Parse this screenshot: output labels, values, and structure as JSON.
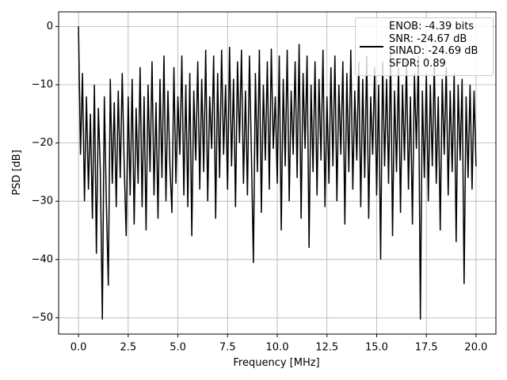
{
  "chart_data": {
    "type": "line",
    "xlabel": "Frequency [MHz]",
    "ylabel": "PSD [dB]",
    "x": [
      0,
      0.1,
      0.2,
      0.3,
      0.4,
      0.5,
      0.6,
      0.7,
      0.8,
      0.9,
      1,
      1.1,
      1.2,
      1.3,
      1.4,
      1.5,
      1.6,
      1.7,
      1.8,
      1.9,
      2,
      2.1,
      2.2,
      2.3,
      2.4,
      2.5,
      2.6,
      2.7,
      2.8,
      2.9,
      3,
      3.1,
      3.2,
      3.3,
      3.4,
      3.5,
      3.6,
      3.7,
      3.8,
      3.9,
      4,
      4.1,
      4.2,
      4.3,
      4.4,
      4.5,
      4.6,
      4.7,
      4.8,
      4.9,
      5,
      5.1,
      5.2,
      5.3,
      5.4,
      5.5,
      5.6,
      5.7,
      5.8,
      5.9,
      6,
      6.1,
      6.2,
      6.3,
      6.4,
      6.5,
      6.6,
      6.7,
      6.8,
      6.9,
      7,
      7.1,
      7.2,
      7.3,
      7.4,
      7.5,
      7.6,
      7.7,
      7.8,
      7.9,
      8,
      8.1,
      8.2,
      8.3,
      8.4,
      8.5,
      8.6,
      8.7,
      8.8,
      8.9,
      9,
      9.1,
      9.2,
      9.3,
      9.4,
      9.5,
      9.6,
      9.7,
      9.8,
      9.9,
      10,
      10.1,
      10.2,
      10.3,
      10.4,
      10.5,
      10.6,
      10.7,
      10.8,
      10.9,
      11,
      11.1,
      11.2,
      11.3,
      11.4,
      11.5,
      11.6,
      11.7,
      11.8,
      11.9,
      12,
      12.1,
      12.2,
      12.3,
      12.4,
      12.5,
      12.6,
      12.7,
      12.8,
      12.9,
      13,
      13.1,
      13.2,
      13.3,
      13.4,
      13.5,
      13.6,
      13.7,
      13.8,
      13.9,
      14,
      14.1,
      14.2,
      14.3,
      14.4,
      14.5,
      14.6,
      14.7,
      14.8,
      14.9,
      15,
      15.1,
      15.2,
      15.3,
      15.4,
      15.5,
      15.6,
      15.7,
      15.8,
      15.9,
      16,
      16.1,
      16.2,
      16.3,
      16.4,
      16.5,
      16.6,
      16.7,
      16.8,
      16.9,
      17,
      17.1,
      17.2,
      17.3,
      17.4,
      17.5,
      17.6,
      17.7,
      17.8,
      17.9,
      18,
      18.1,
      18.2,
      18.3,
      18.4,
      18.5,
      18.6,
      18.7,
      18.8,
      18.9,
      19,
      19.1,
      19.2,
      19.3,
      19.4,
      19.5,
      19.6,
      19.7,
      19.8,
      19.9,
      20
    ],
    "series": [
      {
        "name": "ENOB: -4.39 bits\nSNR: -24.67 dB\nSINAD: -24.69 dB\nSFDR: 0.89",
        "color": "#000000",
        "values": [
          0,
          -22,
          -8,
          -30,
          -12,
          -28,
          -15,
          -33,
          -10,
          -39,
          -14,
          -25,
          -50.3,
          -12,
          -30,
          -44.5,
          -9,
          -27,
          -13,
          -31,
          -11,
          -26,
          -8,
          -24,
          -36,
          -12,
          -29,
          -9,
          -34,
          -14,
          -27,
          -7,
          -31,
          -12,
          -35,
          -10,
          -25,
          -6,
          -29,
          -13,
          -33,
          -9,
          -26,
          -5,
          -30,
          -11,
          -24,
          -32,
          -7,
          -27,
          -12,
          -22,
          -5,
          -29,
          -10,
          -31,
          -8,
          -36,
          -11,
          -23,
          -6,
          -28,
          -9,
          -25,
          -4,
          -30,
          -12,
          -21,
          -5,
          -33,
          -8,
          -26,
          -4,
          -22,
          -10,
          -28,
          -3.5,
          -24,
          -9,
          -31,
          -6,
          -20,
          -4,
          -27,
          -11,
          -29,
          -5,
          -22,
          -40.6,
          -8,
          -25,
          -4,
          -32,
          -10,
          -23,
          -6,
          -28,
          -3.8,
          -21,
          -12,
          -27,
          -5,
          -35,
          -9,
          -24,
          -4,
          -30,
          -11,
          -22,
          -6,
          -26,
          -3,
          -33,
          -8,
          -21,
          -5,
          -38,
          -10,
          -25,
          -6,
          -29,
          -9,
          -23,
          -4,
          -31,
          -12,
          -27,
          -7,
          -24,
          -5,
          -30,
          -10,
          -22,
          -6,
          -34,
          -8,
          -25,
          -4,
          -28,
          -11,
          -23,
          -6,
          -31,
          -9,
          -26,
          -5,
          -33,
          -12,
          -22,
          -7,
          -29,
          -10,
          -40,
          -6,
          -24,
          -9,
          -27,
          -4,
          -36,
          -11,
          -25,
          -7,
          -32,
          -10,
          -23,
          -6,
          -28,
          -12,
          -34,
          -8,
          -21,
          -5,
          -50.3,
          -11,
          -26,
          -8,
          -30,
          -10,
          -24,
          -6,
          -27,
          -12,
          -35,
          -9,
          -22,
          -7,
          -29,
          -11,
          -25,
          -8,
          -37,
          -10,
          -23,
          -9,
          -44.2,
          -12,
          -26,
          -10,
          -28,
          -11,
          -24
        ]
      }
    ],
    "xlim": [
      -1,
      21
    ],
    "xticks": [
      {
        "value": 0,
        "label": "0.0"
      },
      2.5,
      {
        "value": 5,
        "label": "5.0"
      },
      7.5,
      {
        "value": 10,
        "label": "10.0"
      },
      12.5,
      {
        "value": 15,
        "label": "15.0"
      },
      17.5,
      {
        "value": 20,
        "label": "20.0"
      }
    ],
    "ylim": [
      -52.8,
      2.5
    ],
    "yticks": [
      {
        "value": -50,
        "label": "−50"
      },
      {
        "value": -40,
        "label": "−40"
      },
      {
        "value": -30,
        "label": "−30"
      },
      {
        "value": -20,
        "label": "−20"
      },
      {
        "value": -10,
        "label": "−10"
      },
      0
    ],
    "grid": true,
    "legend": "upper right"
  }
}
